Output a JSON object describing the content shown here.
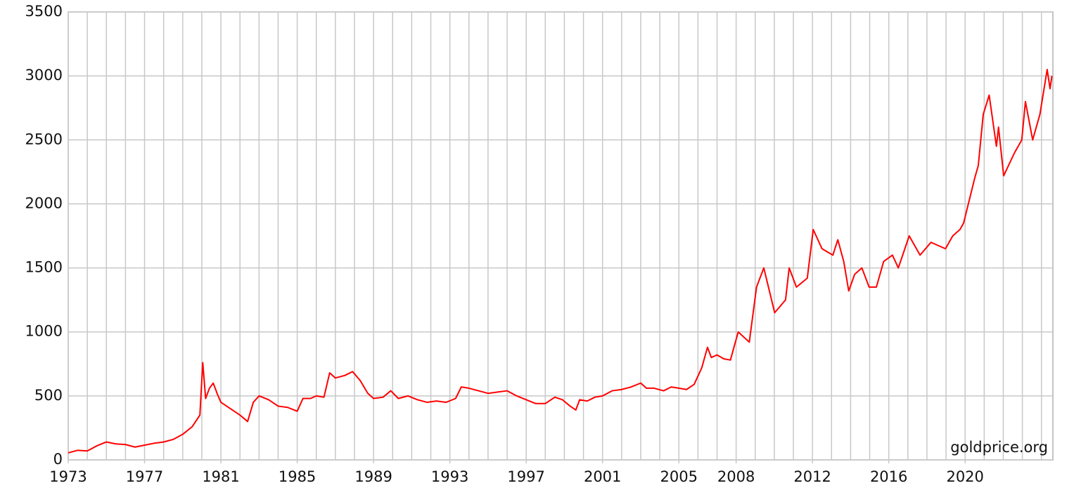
{
  "chart_data": {
    "type": "line",
    "annotation": "goldprice.org",
    "x": [
      1973.0,
      1973.5,
      1974.0,
      1974.5,
      1975.0,
      1975.5,
      1976.0,
      1976.5,
      1977.0,
      1977.5,
      1978.0,
      1978.5,
      1979.0,
      1979.5,
      1979.9,
      1980.05,
      1980.2,
      1980.4,
      1980.6,
      1980.8,
      1981.0,
      1981.5,
      1982.0,
      1982.4,
      1982.7,
      1983.0,
      1983.5,
      1984.0,
      1984.5,
      1985.0,
      1985.3,
      1985.7,
      1986.0,
      1986.4,
      1986.7,
      1987.0,
      1987.5,
      1987.9,
      1988.3,
      1988.7,
      1989.0,
      1989.5,
      1989.9,
      1990.3,
      1990.8,
      1991.3,
      1991.8,
      1992.3,
      1992.8,
      1993.3,
      1993.6,
      1994.0,
      1994.5,
      1995.0,
      1995.5,
      1996.0,
      1996.5,
      1997.0,
      1997.5,
      1998.0,
      1998.5,
      1998.9,
      1999.3,
      1999.6,
      1999.8,
      2000.2,
      2000.6,
      2001.0,
      2001.5,
      2002.0,
      2002.5,
      2003.0,
      2003.3,
      2003.7,
      2004.2,
      2004.6,
      2005.0,
      2005.4,
      2005.8,
      2006.2,
      2006.5,
      2006.7,
      2007.0,
      2007.35,
      2007.7,
      2008.11,
      2008.69,
      2009.07,
      2009.45,
      2010.02,
      2010.59,
      2010.78,
      2011.16,
      2011.73,
      2012.04,
      2012.5,
      2013.07,
      2013.33,
      2013.64,
      2013.9,
      2014.21,
      2014.59,
      2014.97,
      2015.35,
      2015.73,
      2016.19,
      2016.5,
      2017.07,
      2017.64,
      2018.21,
      2018.97,
      2019.35,
      2019.73,
      2019.92,
      2020.5,
      2020.69,
      2020.95,
      2021.26,
      2021.64,
      2021.75,
      2022.02,
      2022.59,
      2022.97,
      2023.16,
      2023.54,
      2023.92,
      2024.3,
      2024.45,
      2024.55
    ],
    "series": [
      {
        "color": "#ff0000",
        "values": [
          55,
          75,
          70,
          110,
          140,
          125,
          120,
          100,
          115,
          130,
          140,
          160,
          200,
          260,
          350,
          760,
          480,
          560,
          600,
          520,
          450,
          400,
          350,
          300,
          450,
          500,
          470,
          420,
          410,
          380,
          480,
          480,
          500,
          490,
          680,
          640,
          660,
          690,
          620,
          520,
          480,
          490,
          540,
          480,
          500,
          470,
          450,
          460,
          450,
          480,
          570,
          560,
          540,
          520,
          530,
          540,
          500,
          470,
          440,
          440,
          490,
          470,
          420,
          390,
          470,
          460,
          490,
          500,
          540,
          550,
          570,
          600,
          560,
          560,
          540,
          570,
          560,
          550,
          590,
          720,
          880,
          800,
          820,
          790,
          780,
          1000,
          920,
          1350,
          1500,
          1150,
          1250,
          1500,
          1350,
          1420,
          1800,
          1650,
          1600,
          1720,
          1550,
          1320,
          1450,
          1500,
          1350,
          1350,
          1550,
          1600,
          1500,
          1750,
          1600,
          1700,
          1650,
          1750,
          1800,
          1850,
          2200,
          2300,
          2700,
          2850,
          2450,
          2600,
          2220,
          2400,
          2500,
          2800,
          2500,
          2700,
          3050,
          2900,
          3000
        ]
      }
    ],
    "xlim": [
      1973,
      2024.6
    ],
    "xticks": [
      1973,
      1977,
      1981,
      1985,
      1989,
      1993,
      1997,
      2001,
      2005,
      2008,
      2012,
      2016,
      2020
    ],
    "xgrid": [
      1973,
      1974,
      1975,
      1976,
      1977,
      1978,
      1979,
      1980,
      1981,
      1982,
      1983,
      1984,
      1985,
      1986,
      1987,
      1988,
      1989,
      1990,
      1991,
      1992,
      1993,
      1994,
      1995,
      1996,
      1997,
      1998,
      1999,
      2000,
      2001,
      2002,
      2003,
      2004,
      2005,
      2006,
      2007,
      2008,
      2009,
      2010,
      2011,
      2012,
      2013,
      2014,
      2015,
      2016,
      2017,
      2018,
      2019,
      2020,
      2021,
      2022,
      2023,
      2024
    ],
    "ylim": [
      0,
      3500
    ],
    "yticks": [
      0,
      500,
      1000,
      1500,
      2000,
      2500,
      3000,
      3500
    ],
    "grid": true
  }
}
